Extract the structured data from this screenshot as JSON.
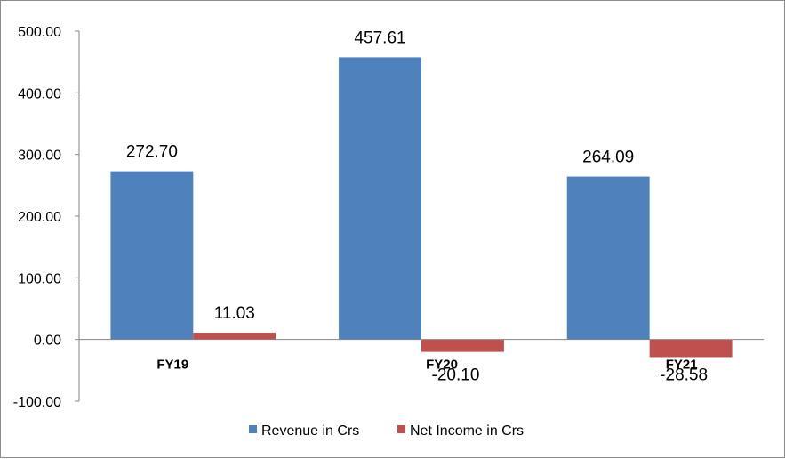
{
  "chart_data": {
    "type": "bar",
    "categories": [
      "FY19",
      "FY20",
      "FY21"
    ],
    "series": [
      {
        "name": "Revenue in Crs",
        "values": [
          272.7,
          457.61,
          264.09
        ],
        "labels": [
          "272.70",
          "457.61",
          "264.09"
        ],
        "color": "#4f81bd"
      },
      {
        "name": "Net Income in Crs",
        "values": [
          11.03,
          -20.1,
          -28.58
        ],
        "labels": [
          "11.03",
          "-20.10",
          "-28.58"
        ],
        "color": "#c0504d"
      }
    ],
    "yticks": [
      "500.00",
      "400.00",
      "300.00",
      "200.00",
      "100.00",
      "0.00",
      "-100.00"
    ],
    "ytick_values": [
      500,
      400,
      300,
      200,
      100,
      0,
      -100
    ],
    "ylim": [
      -100,
      500
    ],
    "grid": false,
    "legend": "bottom",
    "title": "",
    "xlabel": "",
    "ylabel": ""
  }
}
